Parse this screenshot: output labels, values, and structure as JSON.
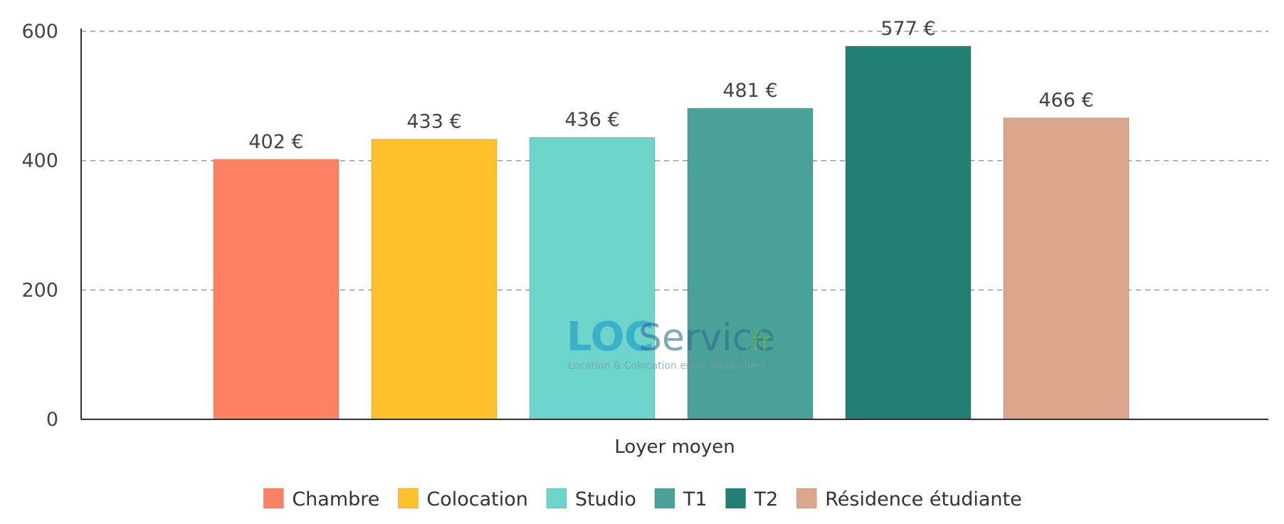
{
  "chart_data": {
    "type": "bar",
    "categories": [
      "Loyer moyen"
    ],
    "xlabel": "Loyer moyen",
    "ylabel": "",
    "ylim": [
      0,
      600
    ],
    "yticks": [
      0,
      200,
      400,
      600
    ],
    "grid": true,
    "legend": "bottom",
    "unit": "€",
    "series": [
      {
        "name": "Chambre",
        "values": [
          402
        ],
        "label": "402 €",
        "color": "#ff8163"
      },
      {
        "name": "Colocation",
        "values": [
          433
        ],
        "label": "433 €",
        "color": "#fdc12c"
      },
      {
        "name": "Studio",
        "values": [
          436
        ],
        "label": "436 €",
        "color": "#6cd4cb"
      },
      {
        "name": "T1",
        "values": [
          481
        ],
        "label": "481 €",
        "color": "#4aa198"
      },
      {
        "name": "T2",
        "values": [
          577
        ],
        "label": "577 €",
        "color": "#217f74"
      },
      {
        "name": "Résidence étudiante",
        "values": [
          466
        ],
        "label": "466 €",
        "color": "#dba68a"
      }
    ]
  },
  "watermark": {
    "brand_loc": "LOC",
    "brand_service": "Service",
    "brand_fr": ".fr",
    "tagline": "Location & Colocation entre particuliers"
  }
}
